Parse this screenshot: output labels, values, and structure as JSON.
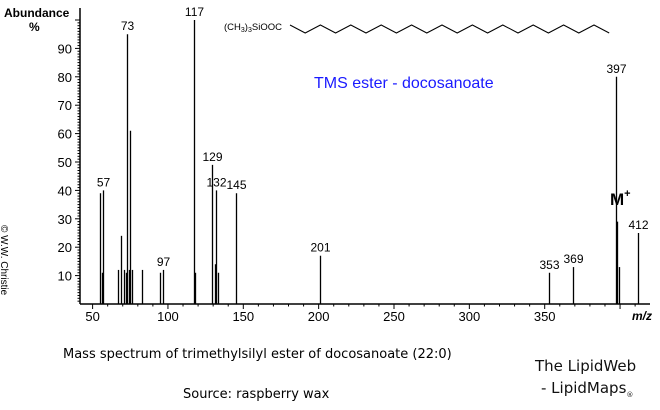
{
  "chart_data": {
    "type": "bar",
    "subtype": "mass-spectrum-stick",
    "title": "TMS ester - docosanoate",
    "title_color": "#1a1aff",
    "structure_label": "(CH3)3SiOOC",
    "xlabel": "m/z",
    "ylabel": "Abundance %",
    "xlim": [
      45,
      415
    ],
    "ylim": [
      0,
      100
    ],
    "x_ticks": [
      50,
      100,
      150,
      200,
      250,
      300,
      350
    ],
    "y_ticks": [
      10,
      20,
      30,
      40,
      50,
      60,
      70,
      80,
      90
    ],
    "grid": false,
    "peaks": [
      {
        "mz": 55,
        "abundance": 39
      },
      {
        "mz": 56,
        "abundance": 11
      },
      {
        "mz": 57,
        "abundance": 40,
        "label": "57"
      },
      {
        "mz": 67,
        "abundance": 12
      },
      {
        "mz": 69,
        "abundance": 24
      },
      {
        "mz": 71,
        "abundance": 12
      },
      {
        "mz": 72,
        "abundance": 11
      },
      {
        "mz": 73,
        "abundance": 95,
        "label": "73"
      },
      {
        "mz": 74,
        "abundance": 12
      },
      {
        "mz": 75,
        "abundance": 61
      },
      {
        "mz": 76,
        "abundance": 12
      },
      {
        "mz": 83,
        "abundance": 12
      },
      {
        "mz": 95,
        "abundance": 11
      },
      {
        "mz": 97,
        "abundance": 12,
        "label": "97"
      },
      {
        "mz": 117,
        "abundance": 100,
        "label": "117"
      },
      {
        "mz": 118,
        "abundance": 11
      },
      {
        "mz": 129,
        "abundance": 49,
        "label": "129"
      },
      {
        "mz": 131,
        "abundance": 14
      },
      {
        "mz": 132,
        "abundance": 40,
        "label": "132"
      },
      {
        "mz": 133,
        "abundance": 11
      },
      {
        "mz": 145,
        "abundance": 39,
        "label": "145"
      },
      {
        "mz": 201,
        "abundance": 17,
        "label": "201"
      },
      {
        "mz": 353,
        "abundance": 11,
        "label": "353"
      },
      {
        "mz": 369,
        "abundance": 13,
        "label": "369"
      },
      {
        "mz": 397,
        "abundance": 80,
        "label": "397"
      },
      {
        "mz": 398,
        "abundance": 29
      },
      {
        "mz": 399,
        "abundance": 13
      },
      {
        "mz": 412,
        "abundance": 25,
        "label": "412"
      }
    ],
    "annotations": [
      {
        "text": "M+",
        "near_mz": 412
      }
    ]
  },
  "labels": {
    "abundance": "Abundance",
    "percent": "%",
    "mz": "m/z",
    "molecular_ion": "M",
    "molecular_ion_sup": "+",
    "structure_prefix": "(CH",
    "structure_sub": "3",
    "structure_suffix": ")",
    "structure_sub2": "3",
    "structure_tail": "SiOOC"
  },
  "caption": {
    "main": "Mass spectrum of trimethylsilyl ester of docosanoate (22:0)",
    "source": "Source: raspberry wax"
  },
  "brand": {
    "line1": "The LipidWeb",
    "line2": "- LipidMaps",
    "mark": "®"
  },
  "copyright": "© W.W. Christie"
}
